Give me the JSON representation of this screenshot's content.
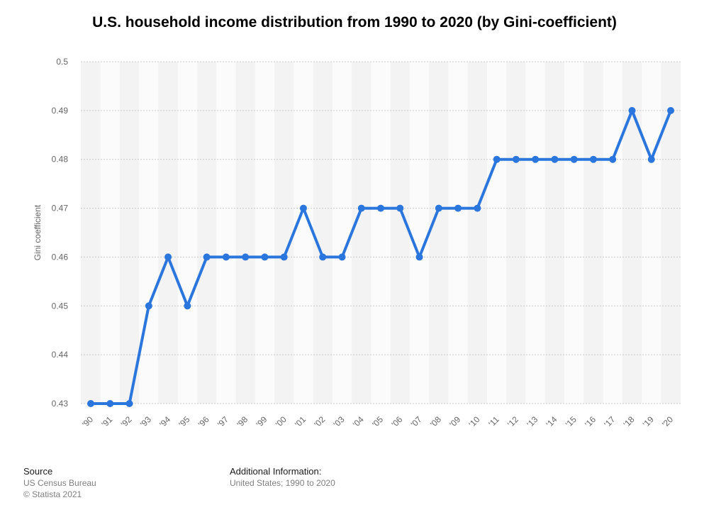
{
  "chart_data": {
    "type": "line",
    "title": "U.S. household income distribution from 1990 to 2020 (by Gini-coefficient)",
    "ylabel": "Gini coefficient",
    "xlabel": "",
    "categories": [
      "'90",
      "'91",
      "'92",
      "'93",
      "'94",
      "'95",
      "'96",
      "'97",
      "'98",
      "'99",
      "'00",
      "'01",
      "'02",
      "'03",
      "'04",
      "'05",
      "'06",
      "'07",
      "'08",
      "'09",
      "'10",
      "'11",
      "'12",
      "'13",
      "'14",
      "'15",
      "'16",
      "'17",
      "'18",
      "'19",
      "'20"
    ],
    "values": [
      0.43,
      0.43,
      0.43,
      0.45,
      0.46,
      0.45,
      0.46,
      0.46,
      0.46,
      0.46,
      0.46,
      0.47,
      0.46,
      0.46,
      0.47,
      0.47,
      0.47,
      0.46,
      0.47,
      0.47,
      0.47,
      0.48,
      0.48,
      0.48,
      0.48,
      0.48,
      0.48,
      0.48,
      0.49,
      0.48,
      0.49
    ],
    "ylim": [
      0.43,
      0.5
    ],
    "yticks": [
      0.43,
      0.44,
      0.45,
      0.46,
      0.47,
      0.48,
      0.49,
      0.5
    ],
    "ytick_labels": [
      "0.43",
      "0.44",
      "0.45",
      "0.46",
      "0.47",
      "0.48",
      "0.49",
      "0.5"
    ],
    "grid": true,
    "line_color": "#2a76dd"
  },
  "footer": {
    "source_heading": "Source",
    "source_lines": [
      "US Census Bureau",
      "© Statista 2021"
    ],
    "info_heading": "Additional Information:",
    "info_lines": [
      "United States; 1990 to 2020"
    ]
  }
}
